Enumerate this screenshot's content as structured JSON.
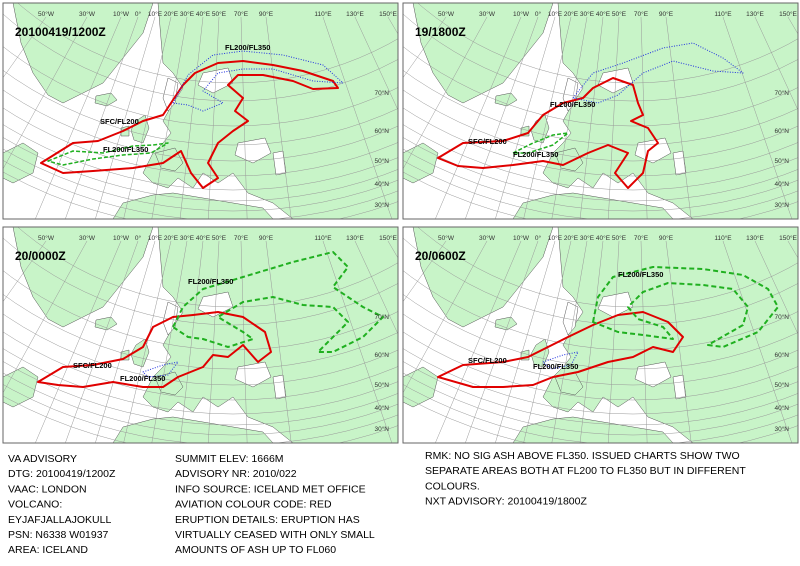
{
  "panels": [
    {
      "title": "20100419/1200Z",
      "labels": [
        "FL200/FL350",
        "SFC/FL200",
        "FL200/FL350"
      ]
    },
    {
      "title": "19/1800Z",
      "labels": [
        "FL200/FL350",
        "SFC/FL200",
        "FL200/FL350"
      ]
    },
    {
      "title": "20/0000Z",
      "labels": [
        "FL200/FL350",
        "SFC/FL200",
        "FL200/FL350"
      ]
    },
    {
      "title": "20/0600Z",
      "labels": [
        "FL200/FL350",
        "SFC/FL200",
        "FL200/FL350"
      ]
    }
  ],
  "lon_labels": [
    "50°W",
    "30°W",
    "10°W",
    "0°",
    "10°E",
    "20°E",
    "30°E",
    "40°E",
    "50°E",
    "70°E",
    "90°E",
    "110°E",
    "130°E",
    "150°E"
  ],
  "lat_labels": [
    "70°N",
    "60°N",
    "50°N",
    "40°N",
    "30°N"
  ],
  "advisory": {
    "left": [
      "VA ADVISORY",
      "DTG:  20100419/1200Z",
      "VAAC:  LONDON",
      "VOLCANO:",
      "EYJAFJALLAJOKULL",
      "PSN:  N6338 W01937",
      "AREA:  ICELAND"
    ],
    "middle": [
      "SUMMIT ELEV:  1666M",
      "ADVISORY NR:  2010/022",
      "INFO SOURCE:  ICELAND MET OFFICE",
      "AVIATION COLOUR CODE:  RED",
      "ERUPTION DETAILS:  ERUPTION HAS",
      "VIRTUALLY CEASED WITH ONLY SMALL",
      "AMOUNTS OF ASH UP TO FL060"
    ],
    "right": [
      "RMK:  NO SIG ASH ABOVE FL350.  ISSUED CHARTS SHOW TWO",
      "SEPARATE AREAS BOTH AT FL200 TO FL350 BUT IN DIFFERENT",
      "COLOURS.",
      "NXT ADVISORY:  20100419/1800Z"
    ]
  }
}
